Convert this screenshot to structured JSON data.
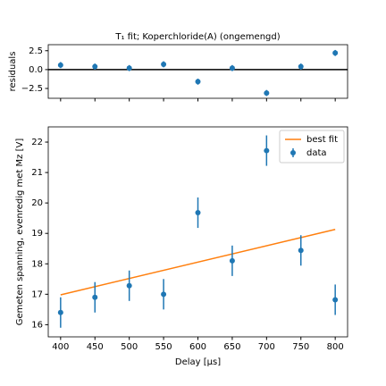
{
  "chart_data": [
    {
      "type": "errorbar",
      "title": "T₁ fit; Koperchloride(A) (ongemengd)",
      "ylabel": "residuals",
      "xlim": [
        382,
        818
      ],
      "xticks": [
        400,
        450,
        500,
        550,
        600,
        650,
        700,
        750,
        800
      ],
      "show_xtick_labels": false,
      "ylim": [
        -3.8,
        3.3
      ],
      "yticks": [
        {
          "value": 2.5,
          "label": "2.5"
        },
        {
          "value": 0,
          "label": "0.0"
        },
        {
          "value": -2.5,
          "label": "−2.5"
        }
      ],
      "hline": 0,
      "series": [
        {
          "name": "data",
          "kind": "errorbar",
          "color": "#1f77b4",
          "x": [
            400,
            450,
            500,
            550,
            600,
            650,
            700,
            750,
            800
          ],
          "values": [
            0.6,
            0.4,
            0.2,
            0.7,
            -1.6,
            0.2,
            -3.1,
            0.4,
            2.2
          ],
          "errors": [
            0.4,
            0.4,
            0.4,
            0.4,
            0.4,
            0.4,
            0.4,
            0.4,
            0.4
          ]
        }
      ]
    },
    {
      "type": "errorbar",
      "xlabel": "Delay [μs]",
      "ylabel": "Gemeten spanning, evenredig met Mz [V]",
      "xlim": [
        382,
        818
      ],
      "xticks": [
        400,
        450,
        500,
        550,
        600,
        650,
        700,
        750,
        800
      ],
      "show_xtick_labels": true,
      "ylim": [
        15.6,
        22.5
      ],
      "yticks": [
        16,
        17,
        18,
        19,
        20,
        21,
        22
      ],
      "legend": "upper right",
      "series": [
        {
          "name": "best fit",
          "kind": "line",
          "color": "#ff7f0e",
          "x": [
            400,
            800
          ],
          "values": [
            16.98,
            19.13
          ]
        },
        {
          "name": "data",
          "kind": "errorbar",
          "color": "#1f77b4",
          "x": [
            400,
            450,
            500,
            550,
            600,
            650,
            700,
            750,
            800
          ],
          "values": [
            16.4,
            16.9,
            17.28,
            17.0,
            19.68,
            18.1,
            21.72,
            18.44,
            16.82
          ],
          "errors": [
            0.5,
            0.5,
            0.5,
            0.5,
            0.5,
            0.5,
            0.5,
            0.5,
            0.5
          ]
        }
      ]
    }
  ]
}
